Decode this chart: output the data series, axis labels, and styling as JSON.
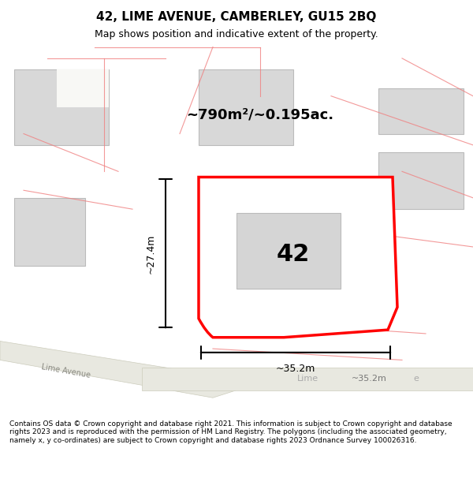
{
  "title": "42, LIME AVENUE, CAMBERLEY, GU15 2BQ",
  "subtitle": "Map shows position and indicative extent of the property.",
  "footer": "Contains OS data © Crown copyright and database right 2021. This information is subject to Crown copyright and database rights 2023 and is reproduced with the permission of HM Land Registry. The polygons (including the associated geometry, namely x, y co-ordinates) are subject to Crown copyright and database rights 2023 Ordnance Survey 100026316.",
  "bg_color": "#f5f5f0",
  "map_bg": "#f8f8f5",
  "plot_outline_color": "#ff0000",
  "road_color": "#e0e0d0",
  "building_fill": "#d8d8d8",
  "building_edge": "#bbbbbb",
  "road_line_color": "#c8c8b8",
  "pink_line_color": "#f08080",
  "area_text": "~790m²/~0.195ac.",
  "plot_number": "42",
  "dim_width": "~35.2m",
  "dim_height": "~27.4m",
  "road_label": "Lime Avenue"
}
